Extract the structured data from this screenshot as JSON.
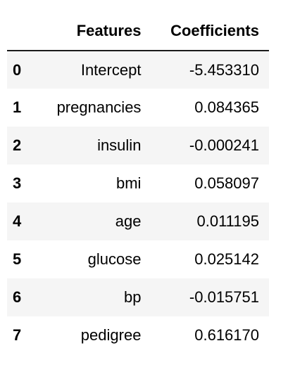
{
  "table": {
    "columns": {
      "index": "",
      "features": "Features",
      "coefficients": "Coefficients"
    },
    "rows": [
      {
        "index": "0",
        "feature": "Intercept",
        "coefficient": "-5.453310"
      },
      {
        "index": "1",
        "feature": "pregnancies",
        "coefficient": "0.084365"
      },
      {
        "index": "2",
        "feature": "insulin",
        "coefficient": "-0.000241"
      },
      {
        "index": "3",
        "feature": "bmi",
        "coefficient": "0.058097"
      },
      {
        "index": "4",
        "feature": "age",
        "coefficient": "0.011195"
      },
      {
        "index": "5",
        "feature": "glucose",
        "coefficient": "0.025142"
      },
      {
        "index": "6",
        "feature": "bp",
        "coefficient": "-0.015751"
      },
      {
        "index": "7",
        "feature": "pedigree",
        "coefficient": "0.616170"
      }
    ],
    "stripe_color": "#f5f5f5",
    "header_rule_color": "#1a1a1a"
  }
}
